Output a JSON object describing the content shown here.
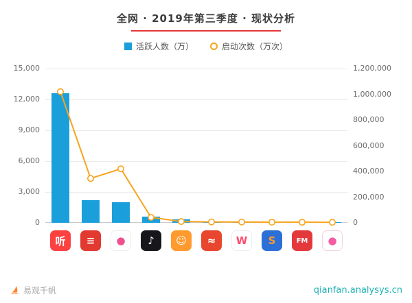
{
  "header": {
    "title": "全网 · 2019年第三季度 · 现状分析",
    "underline_color": "#e53434"
  },
  "legend": {
    "items": [
      {
        "label": "活跃人数（万）",
        "marker": "square",
        "color": "#1b9fdb"
      },
      {
        "label": "启动次数（万次）",
        "marker": "circle",
        "color": "#f7a41d"
      }
    ]
  },
  "chart_data": {
    "type": "bar",
    "combo": "bar+line",
    "title": "全网 · 2019年第三季度 · 现状分析",
    "categories": [
      "red-listen-app",
      "red-radio-app",
      "pink-ball-app",
      "black-bird-app",
      "orange-monkey-app",
      "red-shield-wave-app",
      "white-w-app",
      "blue-dragon-app",
      "red-fm-app",
      "white-raspberry-app"
    ],
    "series": [
      {
        "name": "活跃人数（万）",
        "type": "bar",
        "axis": "left",
        "color": "#1b9fdb",
        "values": [
          12600,
          2200,
          2000,
          620,
          330,
          90,
          70,
          60,
          50,
          40
        ]
      },
      {
        "name": "启动次数（万次）",
        "type": "line",
        "axis": "right",
        "color": "#f7a41d",
        "values": [
          1020000,
          345000,
          420000,
          42000,
          10000,
          7000,
          6000,
          5000,
          4500,
          4000
        ]
      }
    ],
    "left_axis": {
      "max": 15000,
      "ticks": [
        0,
        3000,
        6000,
        9000,
        12000,
        15000
      ],
      "labels": [
        "0",
        "3,000",
        "6,000",
        "9,000",
        "12,000",
        "15,000"
      ]
    },
    "right_axis": {
      "max": 1200000,
      "ticks": [
        0,
        200000,
        400000,
        600000,
        800000,
        1000000,
        1200000
      ],
      "labels": [
        "0",
        "200,000",
        "400,000",
        "600,000",
        "800,000",
        "1,000,000",
        "1,200,000"
      ]
    },
    "grid": true,
    "legend_position": "top"
  },
  "apps": [
    {
      "id": "red-listen",
      "bg": "#fc4141",
      "fg": "#ffffff",
      "glyph": "听"
    },
    {
      "id": "red-radio",
      "bg": "#e23a31",
      "fg": "#ffffff",
      "glyph": "≡"
    },
    {
      "id": "pink-ball",
      "bg": "#ffffff",
      "fg": "#f0508d",
      "glyph": "●",
      "border": "#eeeeee"
    },
    {
      "id": "black-bird",
      "bg": "#17171b",
      "fg": "#ffffff",
      "glyph": "♪"
    },
    {
      "id": "orange-monkey",
      "bg": "#ff9a2e",
      "fg": "#ffffff",
      "glyph": "☺"
    },
    {
      "id": "red-shield-wave",
      "bg": "#e8472e",
      "fg": "#ffffff",
      "glyph": "≈"
    },
    {
      "id": "white-w",
      "bg": "#ffffff",
      "fg": "#ff4d6d",
      "glyph": "W",
      "border": "#eeeeee"
    },
    {
      "id": "blue-dragon",
      "bg": "#2c6fd6",
      "fg": "#ff9a2e",
      "glyph": "S"
    },
    {
      "id": "red-fm",
      "bg": "#e4393c",
      "fg": "#ffffff",
      "glyph": "FM"
    },
    {
      "id": "white-raspberry",
      "bg": "#ffffff",
      "fg": "#f45ba5",
      "glyph": "●",
      "border": "#f3d3e3"
    }
  ],
  "footer": {
    "brand": "易观千帆",
    "url": "qianfan.analysys.cn",
    "brand_color": "#ff7f2a",
    "url_color": "#1fb1b5"
  }
}
